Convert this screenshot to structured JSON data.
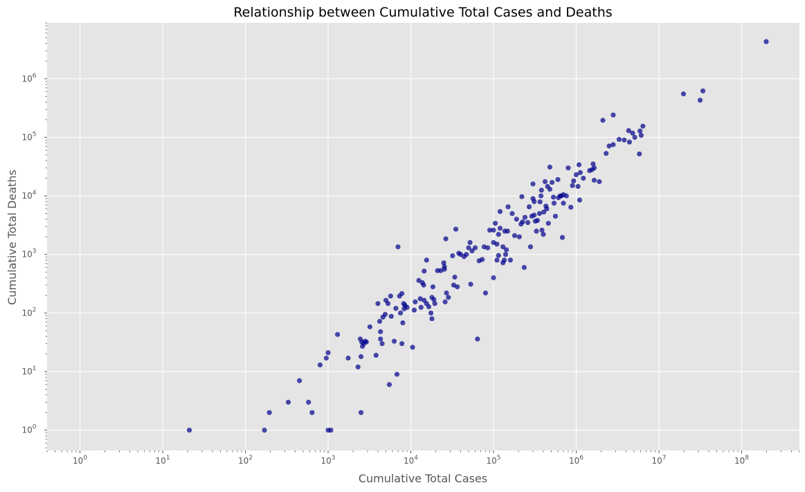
{
  "chart_data": {
    "type": "scatter",
    "title": "Relationship between Cumulative Total Cases and Deaths",
    "xlabel": "Cumulative Total Cases",
    "ylabel": "Cumulative Total Deaths",
    "xscale": "log",
    "yscale": "log",
    "xlim": [
      0.4,
      500000000
    ],
    "ylim": [
      0.45,
      9000000
    ],
    "x_ticks": [
      {
        "value": 1,
        "base": "10",
        "exp": "0"
      },
      {
        "value": 10,
        "base": "10",
        "exp": "1"
      },
      {
        "value": 100,
        "base": "10",
        "exp": "2"
      },
      {
        "value": 1000,
        "base": "10",
        "exp": "3"
      },
      {
        "value": 10000,
        "base": "10",
        "exp": "4"
      },
      {
        "value": 100000,
        "base": "10",
        "exp": "5"
      },
      {
        "value": 1000000,
        "base": "10",
        "exp": "6"
      },
      {
        "value": 10000000,
        "base": "10",
        "exp": "7"
      },
      {
        "value": 100000000,
        "base": "10",
        "exp": "8"
      }
    ],
    "y_ticks": [
      {
        "value": 1,
        "base": "10",
        "exp": "0"
      },
      {
        "value": 10,
        "base": "10",
        "exp": "1"
      },
      {
        "value": 100,
        "base": "10",
        "exp": "2"
      },
      {
        "value": 1000,
        "base": "10",
        "exp": "3"
      },
      {
        "value": 10000,
        "base": "10",
        "exp": "4"
      },
      {
        "value": 100000,
        "base": "10",
        "exp": "5"
      },
      {
        "value": 1000000,
        "base": "10",
        "exp": "6"
      }
    ],
    "grid": true,
    "colors": {
      "background": "#e5e5e5",
      "grid": "#ffffff",
      "point": "#00008b",
      "minor_tick": "#555555"
    },
    "points": [
      [
        21,
        1
      ],
      [
        170,
        1
      ],
      [
        195,
        2
      ],
      [
        330,
        3
      ],
      [
        450,
        7
      ],
      [
        580,
        3
      ],
      [
        640,
        2
      ],
      [
        800,
        13
      ],
      [
        950,
        17
      ],
      [
        1000,
        21
      ],
      [
        1000,
        1
      ],
      [
        1080,
        1
      ],
      [
        1300,
        43
      ],
      [
        1750,
        17
      ],
      [
        2300,
        12
      ],
      [
        2450,
        36
      ],
      [
        2500,
        2
      ],
      [
        2500,
        18
      ],
      [
        2550,
        32
      ],
      [
        2600,
        27
      ],
      [
        2700,
        30
      ],
      [
        2800,
        33
      ],
      [
        2900,
        32
      ],
      [
        3200,
        58
      ],
      [
        3800,
        19
      ],
      [
        4000,
        145
      ],
      [
        4300,
        48
      ],
      [
        4300,
        36
      ],
      [
        4500,
        30
      ],
      [
        4200,
        72
      ],
      [
        4600,
        85
      ],
      [
        4900,
        95
      ],
      [
        5000,
        165
      ],
      [
        5300,
        145
      ],
      [
        5500,
        6
      ],
      [
        5700,
        195
      ],
      [
        5800,
        88
      ],
      [
        6300,
        33
      ],
      [
        6600,
        120
      ],
      [
        6800,
        9
      ],
      [
        7000,
        1350
      ],
      [
        7300,
        195
      ],
      [
        7500,
        100
      ],
      [
        7800,
        30
      ],
      [
        7800,
        215
      ],
      [
        8000,
        68
      ],
      [
        8200,
        145
      ],
      [
        8300,
        118
      ],
      [
        8500,
        135
      ],
      [
        9000,
        125
      ],
      [
        10500,
        26
      ],
      [
        11000,
        112
      ],
      [
        11300,
        155
      ],
      [
        12500,
        360
      ],
      [
        13000,
        175
      ],
      [
        13300,
        125
      ],
      [
        13800,
        330
      ],
      [
        14300,
        300
      ],
      [
        14500,
        520
      ],
      [
        14500,
        165
      ],
      [
        15500,
        800
      ],
      [
        15500,
        145
      ],
      [
        16500,
        128
      ],
      [
        17500,
        100
      ],
      [
        18000,
        185
      ],
      [
        18000,
        80
      ],
      [
        18500,
        280
      ],
      [
        19000,
        170
      ],
      [
        19500,
        145
      ],
      [
        21000,
        530
      ],
      [
        23000,
        530
      ],
      [
        25000,
        720
      ],
      [
        25500,
        560
      ],
      [
        25500,
        620
      ],
      [
        26000,
        155
      ],
      [
        26500,
        1850
      ],
      [
        27000,
        220
      ],
      [
        28500,
        185
      ],
      [
        32000,
        950
      ],
      [
        33000,
        300
      ],
      [
        34000,
        410
      ],
      [
        35000,
        2700
      ],
      [
        36500,
        280
      ],
      [
        38000,
        1050
      ],
      [
        40000,
        1000
      ],
      [
        44000,
        920
      ],
      [
        47000,
        1000
      ],
      [
        50000,
        1300
      ],
      [
        52000,
        1600
      ],
      [
        53000,
        310
      ],
      [
        55000,
        1150
      ],
      [
        60000,
        1300
      ],
      [
        64000,
        36
      ],
      [
        67000,
        780
      ],
      [
        73000,
        820
      ],
      [
        77000,
        1350
      ],
      [
        80000,
        220
      ],
      [
        85000,
        1300
      ],
      [
        90000,
        2600
      ],
      [
        100000,
        2600
      ],
      [
        100000,
        1600
      ],
      [
        100000,
        400
      ],
      [
        105000,
        3400
      ],
      [
        110000,
        1500
      ],
      [
        110000,
        800
      ],
      [
        115000,
        960
      ],
      [
        115000,
        2200
      ],
      [
        120000,
        2800
      ],
      [
        120000,
        5400
      ],
      [
        130000,
        1350
      ],
      [
        130000,
        720
      ],
      [
        135000,
        800
      ],
      [
        137000,
        2500
      ],
      [
        140000,
        1000
      ],
      [
        143000,
        1200
      ],
      [
        148000,
        2500
      ],
      [
        150000,
        6500
      ],
      [
        160000,
        800
      ],
      [
        168000,
        5000
      ],
      [
        180000,
        2100
      ],
      [
        190000,
        4000
      ],
      [
        205000,
        2000
      ],
      [
        215000,
        3300
      ],
      [
        220000,
        9700
      ],
      [
        225000,
        3600
      ],
      [
        235000,
        600
      ],
      [
        240000,
        4300
      ],
      [
        260000,
        3500
      ],
      [
        270000,
        6500
      ],
      [
        280000,
        1350
      ],
      [
        290000,
        4500
      ],
      [
        300000,
        16000
      ],
      [
        300000,
        9000
      ],
      [
        310000,
        4700
      ],
      [
        310000,
        8000
      ],
      [
        320000,
        3700
      ],
      [
        330000,
        2500
      ],
      [
        340000,
        3800
      ],
      [
        360000,
        5000
      ],
      [
        365000,
        7900
      ],
      [
        375000,
        10000
      ],
      [
        380000,
        12500
      ],
      [
        385000,
        2600
      ],
      [
        400000,
        2200
      ],
      [
        405000,
        5300
      ],
      [
        420000,
        17500
      ],
      [
        430000,
        6700
      ],
      [
        440000,
        6000
      ],
      [
        450000,
        14500
      ],
      [
        460000,
        3400
      ],
      [
        480000,
        31000
      ],
      [
        480000,
        13000
      ],
      [
        510000,
        17000
      ],
      [
        530000,
        9500
      ],
      [
        540000,
        7500
      ],
      [
        560000,
        4500
      ],
      [
        600000,
        19000
      ],
      [
        610000,
        9300
      ],
      [
        640000,
        10000
      ],
      [
        660000,
        10000
      ],
      [
        680000,
        1950
      ],
      [
        700000,
        10500
      ],
      [
        700000,
        7500
      ],
      [
        760000,
        10000
      ],
      [
        800000,
        30000
      ],
      [
        860000,
        6400
      ],
      [
        900000,
        15000
      ],
      [
        930000,
        18000
      ],
      [
        1000000,
        23000
      ],
      [
        1050000,
        14500
      ],
      [
        1080000,
        34000
      ],
      [
        1100000,
        8500
      ],
      [
        1120000,
        25000
      ],
      [
        1220000,
        20000
      ],
      [
        1450000,
        27000
      ],
      [
        1550000,
        28000
      ],
      [
        1600000,
        35000
      ],
      [
        1650000,
        30000
      ],
      [
        1650000,
        18500
      ],
      [
        1900000,
        17500
      ],
      [
        2100000,
        195000
      ],
      [
        2300000,
        53000
      ],
      [
        2500000,
        71000
      ],
      [
        2800000,
        240000
      ],
      [
        2800000,
        75000
      ],
      [
        3300000,
        92000
      ],
      [
        3800000,
        90000
      ],
      [
        4300000,
        130000
      ],
      [
        4400000,
        83000
      ],
      [
        4800000,
        118000
      ],
      [
        5100000,
        100000
      ],
      [
        5800000,
        52000
      ],
      [
        5900000,
        128000
      ],
      [
        6100000,
        108000
      ],
      [
        6400000,
        155000
      ],
      [
        19800000,
        550000
      ],
      [
        31500000,
        430000
      ],
      [
        34000000,
        620000
      ],
      [
        198000000,
        4300000
      ]
    ]
  }
}
